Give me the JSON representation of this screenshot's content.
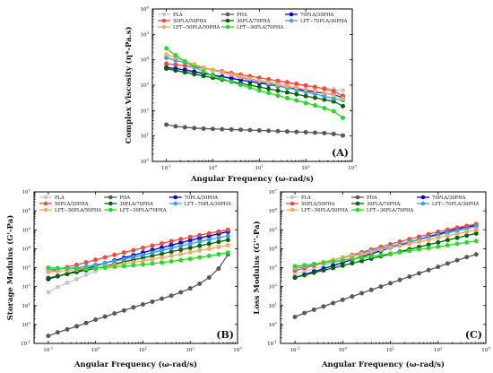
{
  "chart_data": [
    {
      "type": "line",
      "panel": "A",
      "panel_label": "(A)",
      "xlabel": "Angular Frequency (ω-rad/s)",
      "ylabel": "Complex Viscosity (η*-Pa.s)",
      "xscale": "log",
      "yscale": "log",
      "xlim": [
        0.05,
        1000
      ],
      "ylim": [
        1,
        1000000
      ],
      "legend_placement": "top",
      "x": [
        0.1,
        0.158,
        0.251,
        0.398,
        0.631,
        1,
        1.58,
        2.51,
        3.98,
        6.31,
        10,
        15.8,
        25.1,
        39.8,
        63.1,
        100,
        158,
        251,
        398,
        628
      ],
      "series": [
        {
          "name": "PLA",
          "color": "#c8c8c8",
          "values": [
            4500,
            3800,
            3400,
            3100,
            2800,
            2550,
            2300,
            2050,
            1850,
            1680,
            1520,
            1380,
            1250,
            1130,
            1020,
            930,
            840,
            760,
            690,
            620
          ]
        },
        {
          "name": "PHA",
          "color": "#595959",
          "values": [
            28,
            24,
            22,
            20.5,
            19.5,
            19,
            18.5,
            18,
            17.5,
            17,
            16.5,
            16,
            15.5,
            15,
            14.5,
            14,
            13.5,
            13,
            12,
            10.5
          ]
        },
        {
          "name": "70PLA/30PHA",
          "color": "#0000e0",
          "values": [
            5000,
            4500,
            4000,
            3400,
            2900,
            2500,
            2150,
            1850,
            1600,
            1400,
            1220,
            1060,
            920,
            800,
            700,
            610,
            540,
            480,
            420,
            330
          ]
        },
        {
          "name": "50PLA/50PHA",
          "color": "#f04a3a",
          "values": [
            7000,
            6400,
            5800,
            5200,
            4600,
            4000,
            3500,
            3000,
            2600,
            2250,
            1950,
            1700,
            1480,
            1300,
            1130,
            980,
            850,
            720,
            580,
            380
          ]
        },
        {
          "name": "30PLA/70PHA",
          "color": "#006400",
          "values": [
            4500,
            3800,
            3200,
            2700,
            2300,
            1950,
            1650,
            1400,
            1180,
            1000,
            850,
            720,
            610,
            520,
            440,
            370,
            320,
            270,
            230,
            150
          ]
        },
        {
          "name": "LFT−70PLA/30PHA",
          "color": "#3aa0e8",
          "values": [
            12000,
            9500,
            7600,
            6000,
            4800,
            3900,
            3150,
            2550,
            2050,
            1700,
            1400,
            1150,
            950,
            790,
            650,
            540,
            450,
            370,
            300,
            260
          ]
        },
        {
          "name": "LFT−50PLA/50PHA",
          "color": "#f5a860",
          "values": [
            16000,
            12000,
            8800,
            6600,
            5000,
            4000,
            3200,
            2600,
            2150,
            1800,
            1500,
            1270,
            1080,
            920,
            790,
            680,
            590,
            500,
            400,
            300
          ]
        },
        {
          "name": "LFT−30PLA/70PHA",
          "color": "#22dd22",
          "values": [
            28000,
            15000,
            8500,
            5200,
            3400,
            2400,
            1800,
            1350,
            1020,
            800,
            620,
            490,
            390,
            310,
            250,
            200,
            160,
            125,
            95,
            52
          ]
        }
      ]
    },
    {
      "type": "line",
      "panel": "B",
      "panel_label": "(B)",
      "xlabel": "Angular Frequency (ω-rad/s)",
      "ylabel": "Storage Modulus (G'-Pa)",
      "xscale": "log",
      "yscale": "log",
      "xlim": [
        0.05,
        1000
      ],
      "ylim": [
        0.1,
        10000000
      ],
      "legend_placement": "top",
      "x": [
        0.1,
        0.158,
        0.251,
        0.398,
        0.631,
        1,
        1.58,
        2.51,
        3.98,
        6.31,
        10,
        15.8,
        25.1,
        39.8,
        63.1,
        100,
        158,
        251,
        398,
        628
      ],
      "series": [
        {
          "name": "PLA",
          "color": "#c8c8c8",
          "values": [
            50,
            95,
            160,
            250,
            420,
            650,
            1000,
            1500,
            2200,
            3200,
            4600,
            6500,
            9000,
            12500,
            17000,
            23000,
            31000,
            42000,
            56000,
            75000
          ]
        },
        {
          "name": "PHA",
          "color": "#595959",
          "values": [
            0.25,
            0.38,
            0.55,
            0.8,
            1.2,
            1.8,
            2.6,
            3.8,
            5.5,
            8,
            11.5,
            16,
            23,
            33,
            50,
            80,
            140,
            300,
            900,
            5000
          ]
        },
        {
          "name": "70PLA/30PHA",
          "color": "#0000e0",
          "values": [
            250,
            350,
            480,
            650,
            900,
            1250,
            1750,
            2400,
            3300,
            4500,
            6200,
            8500,
            11500,
            15500,
            21000,
            28000,
            37000,
            48000,
            62000,
            80000
          ]
        },
        {
          "name": "50PLA/50PHA",
          "color": "#f04a3a",
          "values": [
            600,
            800,
            1050,
            1400,
            1900,
            2600,
            3500,
            4700,
            6300,
            8400,
            11000,
            14500,
            19000,
            25000,
            32000,
            41000,
            52000,
            65000,
            80000,
            98000
          ]
        },
        {
          "name": "30PLA/70PHA",
          "color": "#006400",
          "values": [
            280,
            360,
            460,
            580,
            740,
            940,
            1200,
            1550,
            2000,
            2550,
            3300,
            4200,
            5400,
            6900,
            8800,
            11200,
            14300,
            18000,
            23000,
            29000
          ]
        },
        {
          "name": "LFT−70PLA/30PHA",
          "color": "#3aa0e8",
          "values": [
            800,
            850,
            900,
            1000,
            1150,
            1400,
            1750,
            2200,
            2800,
            3600,
            4700,
            6100,
            8000,
            10500,
            13800,
            18000,
            23500,
            30000,
            38000,
            48000
          ]
        },
        {
          "name": "LFT−50PLA/50PHA",
          "color": "#f5a860",
          "values": [
            600,
            650,
            700,
            780,
            880,
            1000,
            1150,
            1350,
            1600,
            1900,
            2300,
            2800,
            3400,
            4200,
            5200,
            6500,
            8100,
            10000,
            12500,
            15500
          ]
        },
        {
          "name": "LFT−30PLA/70PHA",
          "color": "#22dd22",
          "values": [
            1000,
            950,
            900,
            900,
            920,
            960,
            1020,
            1100,
            1200,
            1320,
            1470,
            1650,
            1870,
            2150,
            2500,
            2950,
            3500,
            4200,
            5100,
            6200
          ]
        }
      ]
    },
    {
      "type": "line",
      "panel": "C",
      "panel_label": "(C)",
      "xlabel": "Angular Frequency (ω-rad/s)",
      "ylabel": "Loss Modulus (G''-Pa)",
      "xscale": "log",
      "yscale": "log",
      "xlim": [
        0.05,
        1000
      ],
      "ylim": [
        0.1,
        10000000
      ],
      "legend_placement": "top",
      "x": [
        0.1,
        0.158,
        0.251,
        0.398,
        0.631,
        1,
        1.58,
        2.51,
        3.98,
        6.31,
        10,
        15.8,
        25.1,
        39.8,
        63.1,
        100,
        158,
        251,
        398,
        628
      ],
      "series": [
        {
          "name": "PLA",
          "color": "#c8c8c8",
          "values": [
            450,
            620,
            880,
            1250,
            1750,
            2450,
            3400,
            4700,
            6500,
            9000,
            12500,
            17000,
            23500,
            32000,
            44000,
            60000,
            82000,
            110000,
            150000,
            200000
          ]
        },
        {
          "name": "PHA",
          "color": "#595959",
          "values": [
            2.5,
            4,
            6,
            9,
            13.5,
            20,
            30,
            45,
            67,
            100,
            150,
            225,
            335,
            500,
            740,
            1100,
            1650,
            2450,
            3600,
            5000
          ]
        },
        {
          "name": "70PLA/30PHA",
          "color": "#0000e0",
          "values": [
            300,
            430,
            620,
            890,
            1280,
            1850,
            2650,
            3800,
            5400,
            7700,
            11000,
            15500,
            22000,
            31000,
            43000,
            60000,
            82000,
            110000,
            140000,
            170000
          ]
        },
        {
          "name": "50PLA/50PHA",
          "color": "#f04a3a",
          "values": [
            700,
            950,
            1300,
            1800,
            2500,
            3400,
            4700,
            6500,
            9000,
            12400,
            17000,
            23500,
            32000,
            43000,
            58000,
            78000,
            100000,
            130000,
            160000,
            200000
          ]
        },
        {
          "name": "30PLA/70PHA",
          "color": "#006400",
          "values": [
            300,
            400,
            540,
            720,
            960,
            1280,
            1700,
            2250,
            3000,
            4000,
            5300,
            7000,
            9300,
            12300,
            16300,
            21500,
            28500,
            37500,
            49000,
            64000
          ]
        },
        {
          "name": "LFT−70PLA/30PHA",
          "color": "#3aa0e8",
          "values": [
            900,
            1150,
            1500,
            1950,
            2550,
            3350,
            4400,
            5800,
            7600,
            10000,
            13200,
            17400,
            23000,
            30000,
            39500,
            52000,
            68000,
            89000,
            115000,
            150000
          ]
        },
        {
          "name": "LFT−50PLA/50PHA",
          "color": "#f5a860",
          "values": [
            1000,
            1250,
            1570,
            2000,
            2550,
            3250,
            4150,
            5300,
            6800,
            8700,
            11100,
            14200,
            18200,
            23300,
            29800,
            38000,
            48500,
            62000,
            79000,
            100000
          ]
        },
        {
          "name": "LFT−30PLA/70PHA",
          "color": "#22dd22",
          "values": [
            1200,
            1350,
            1550,
            1800,
            2100,
            2450,
            2850,
            3350,
            3950,
            4650,
            5500,
            6500,
            7700,
            9100,
            10800,
            12800,
            15200,
            18000,
            21500,
            25500
          ]
        }
      ]
    }
  ]
}
